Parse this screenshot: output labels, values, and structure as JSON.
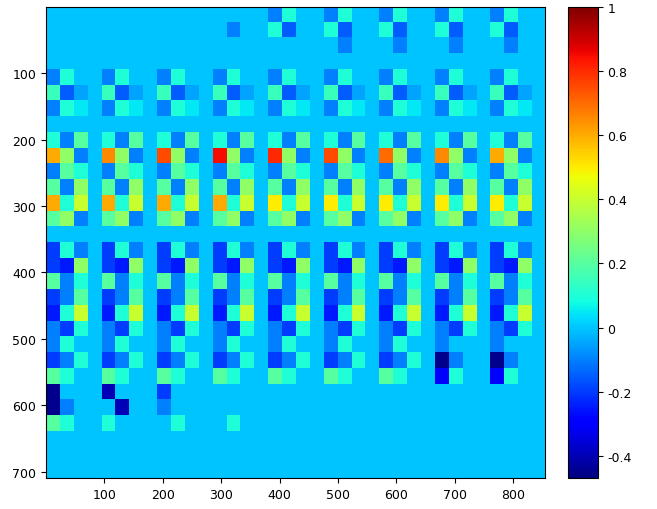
{
  "chart_data": {
    "type": "heatmap",
    "xlim": [
      0,
      855
    ],
    "ylim": [
      710,
      0
    ],
    "xticks": [
      100,
      200,
      300,
      400,
      500,
      600,
      700,
      800
    ],
    "yticks": [
      100,
      200,
      300,
      400,
      500,
      600,
      700
    ],
    "colorbar_range": [
      -0.47,
      1
    ],
    "colorbar_ticks": [
      -0.4,
      -0.2,
      0,
      0.2,
      0.4,
      0.6,
      0.8,
      1
    ],
    "cells": [
      [
        0,
        0,
        0,
        0,
        0,
        0,
        0,
        0,
        0,
        0,
        0,
        0,
        0,
        0,
        0,
        0,
        -0.1,
        0.1,
        0,
        0,
        -0.1,
        0.1,
        0,
        0,
        -0.1,
        0.1,
        0,
        0,
        -0.1,
        0.1,
        0,
        0,
        -0.1,
        0.1,
        0,
        0
      ],
      [
        0,
        0,
        0,
        0,
        0,
        0,
        0,
        0,
        0,
        0,
        0,
        0,
        0,
        -0.1,
        0,
        0,
        0.1,
        -0.15,
        0,
        0,
        0.1,
        -0.15,
        0,
        0,
        0.1,
        -0.15,
        0,
        0,
        0.1,
        -0.15,
        0,
        0,
        0.1,
        -0.15,
        0,
        0
      ],
      [
        0,
        0,
        0,
        0,
        0,
        0,
        0,
        0,
        0,
        0,
        0,
        0,
        0,
        0,
        0,
        0,
        0,
        0,
        0,
        0,
        0,
        -0.1,
        0,
        0,
        0,
        -0.1,
        0,
        0,
        0,
        -0.1,
        0,
        0,
        0,
        -0.1,
        0,
        0
      ],
      [
        0,
        0,
        0,
        0,
        0,
        0,
        0,
        0,
        0,
        0,
        0,
        0,
        0,
        0,
        0,
        0,
        0,
        0,
        0,
        0,
        0,
        0,
        0,
        0,
        0,
        0,
        0,
        0,
        0,
        0,
        0,
        0,
        0,
        0,
        0,
        0
      ],
      [
        -0.1,
        0.1,
        0,
        0,
        -0.1,
        0.1,
        0,
        0,
        -0.1,
        0.1,
        0,
        0,
        -0.1,
        0.1,
        0,
        0,
        -0.1,
        0.1,
        0,
        0,
        -0.1,
        0.1,
        0,
        0,
        -0.1,
        0.1,
        0,
        0,
        -0.1,
        0.1,
        0,
        0,
        -0.1,
        0.1,
        0,
        0
      ],
      [
        0.15,
        -0.15,
        -0.05,
        0,
        0.15,
        -0.15,
        -0.05,
        0,
        0.15,
        -0.15,
        -0.05,
        0,
        0.15,
        -0.15,
        -0.05,
        0,
        0.15,
        -0.15,
        -0.05,
        0,
        0.15,
        -0.15,
        -0.05,
        0,
        0.15,
        -0.15,
        -0.05,
        0,
        0.15,
        -0.15,
        -0.05,
        0,
        0.15,
        -0.15,
        -0.05,
        0
      ],
      [
        -0.1,
        0.1,
        0.05,
        0,
        -0.1,
        0.1,
        0.05,
        0,
        -0.1,
        0.1,
        0.05,
        0,
        -0.1,
        0.1,
        0.05,
        0,
        -0.1,
        0.1,
        0.05,
        0,
        -0.1,
        0.1,
        0.05,
        0,
        -0.1,
        0.1,
        0.05,
        0,
        -0.1,
        0.1,
        0.05,
        0,
        -0.1,
        0.1,
        0.05,
        0
      ],
      [
        0,
        0,
        0,
        0,
        0,
        0,
        0,
        0,
        0,
        0,
        0,
        0,
        0,
        0,
        0,
        0,
        0,
        0,
        0,
        0,
        0,
        0,
        0,
        0,
        0,
        0,
        0,
        0,
        0,
        0,
        0,
        0,
        0,
        0,
        0,
        0
      ],
      [
        0.1,
        -0.1,
        0.2,
        0,
        0.1,
        -0.1,
        0.2,
        0,
        0.1,
        -0.1,
        0.2,
        0,
        0.1,
        -0.1,
        0.2,
        0,
        0.1,
        -0.1,
        0.2,
        0,
        0.1,
        -0.1,
        0.2,
        0,
        0.1,
        -0.1,
        0.2,
        0,
        0.1,
        -0.1,
        0.2,
        0,
        0.1,
        -0.1,
        0.2,
        0
      ],
      [
        0.6,
        0.3,
        -0.1,
        0,
        0.65,
        0.3,
        -0.1,
        0,
        0.75,
        0.3,
        -0.1,
        0,
        0.85,
        0.3,
        -0.1,
        0,
        0.8,
        0.3,
        -0.1,
        0,
        0.75,
        0.3,
        -0.1,
        0,
        0.7,
        0.3,
        -0.1,
        0,
        0.65,
        0.3,
        -0.1,
        0,
        0.6,
        0.3,
        -0.1,
        0
      ],
      [
        -0.1,
        0.2,
        0.1,
        0,
        -0.1,
        0.2,
        0.1,
        0,
        -0.1,
        0.2,
        0.1,
        0,
        -0.1,
        0.2,
        0.1,
        0,
        -0.1,
        0.2,
        0.1,
        0,
        -0.1,
        0.2,
        0.1,
        0,
        -0.1,
        0.2,
        0.1,
        0,
        -0.1,
        0.2,
        0.1,
        0,
        -0.1,
        0.2,
        0.1,
        0
      ],
      [
        0.2,
        -0.1,
        0.3,
        0,
        0.2,
        -0.1,
        0.3,
        0,
        0.2,
        -0.1,
        0.3,
        0,
        0.2,
        -0.1,
        0.3,
        0,
        0.2,
        -0.1,
        0.3,
        0,
        0.2,
        -0.1,
        0.3,
        0,
        0.2,
        -0.1,
        0.3,
        0,
        0.2,
        -0.1,
        0.3,
        0,
        0.2,
        -0.1,
        0.3,
        0
      ],
      [
        0.6,
        0.1,
        0.4,
        0,
        0.6,
        0.1,
        0.4,
        0,
        0.6,
        0.1,
        0.4,
        0,
        0.6,
        0.1,
        0.4,
        0,
        0.5,
        0.1,
        0.4,
        0,
        0.5,
        0.1,
        0.4,
        0,
        0.5,
        0.1,
        0.4,
        0,
        0.5,
        0.1,
        0.4,
        0,
        0.5,
        0.1,
        0.4,
        0
      ],
      [
        0.2,
        0.3,
        -0.1,
        0,
        0.2,
        0.3,
        -0.1,
        0,
        0.2,
        0.3,
        -0.1,
        0,
        0.2,
        0.3,
        -0.1,
        0,
        0.2,
        0.3,
        -0.1,
        0,
        0.2,
        0.3,
        -0.1,
        0,
        0.2,
        0.3,
        -0.1,
        0,
        0.2,
        0.3,
        -0.1,
        0,
        0.2,
        0.3,
        -0.1,
        0
      ],
      [
        0,
        0,
        0,
        0,
        0,
        0,
        0,
        0,
        0,
        0,
        0,
        0,
        0,
        0,
        0,
        0,
        0,
        0,
        0,
        0,
        0,
        0,
        0,
        0,
        0,
        0,
        0,
        0,
        0,
        0,
        0,
        0,
        0,
        0,
        0,
        0
      ],
      [
        -0.2,
        0.1,
        -0.1,
        0,
        -0.2,
        0.1,
        -0.1,
        0,
        -0.2,
        0.1,
        -0.1,
        0,
        -0.2,
        0.1,
        -0.1,
        0,
        -0.2,
        0.1,
        -0.1,
        0,
        -0.2,
        0.1,
        -0.1,
        0,
        -0.2,
        0.1,
        -0.1,
        0,
        -0.2,
        0.1,
        -0.1,
        0,
        -0.2,
        0.1,
        -0.1,
        0
      ],
      [
        -0.2,
        -0.25,
        0.3,
        0,
        -0.2,
        -0.25,
        0.3,
        0,
        -0.2,
        -0.25,
        0.3,
        0,
        -0.2,
        -0.25,
        0.3,
        0,
        -0.2,
        -0.25,
        0.3,
        0,
        -0.2,
        -0.25,
        0.3,
        0,
        -0.2,
        -0.25,
        0.3,
        0,
        -0.2,
        -0.25,
        0.3,
        0,
        -0.2,
        -0.25,
        0.3,
        0
      ],
      [
        0.2,
        -0.1,
        0.1,
        0,
        0.2,
        -0.1,
        0.1,
        0,
        0.2,
        -0.1,
        0.1,
        0,
        0.2,
        -0.1,
        0.1,
        0,
        0.2,
        -0.1,
        0.1,
        0,
        0.2,
        -0.1,
        0.1,
        0,
        0.2,
        -0.1,
        0.1,
        0,
        0.2,
        -0.1,
        0.1,
        0,
        0.2,
        -0.1,
        0.1,
        0
      ],
      [
        -0.2,
        -0.1,
        0.2,
        0,
        -0.2,
        -0.1,
        0.2,
        0,
        -0.2,
        -0.1,
        0.2,
        0,
        -0.2,
        -0.1,
        0.2,
        0,
        -0.2,
        -0.1,
        0.2,
        0,
        -0.2,
        -0.1,
        0.2,
        0,
        -0.2,
        -0.1,
        0.2,
        0,
        -0.2,
        -0.1,
        0.2,
        0,
        -0.2,
        -0.1,
        0.2,
        0
      ],
      [
        -0.25,
        0.1,
        0.4,
        0,
        -0.25,
        0.1,
        0.4,
        0,
        -0.25,
        0.1,
        0.4,
        0,
        -0.25,
        0.1,
        0.4,
        0,
        -0.25,
        0.1,
        0.4,
        0,
        -0.25,
        0.1,
        0.4,
        0,
        -0.25,
        0.1,
        0.4,
        0,
        -0.25,
        0.1,
        0.4,
        0,
        -0.25,
        0.1,
        0.4,
        0
      ],
      [
        -0.1,
        -0.2,
        0.1,
        0,
        -0.1,
        -0.2,
        0.1,
        0,
        -0.1,
        -0.2,
        0.1,
        0,
        -0.1,
        -0.2,
        0.1,
        0,
        -0.1,
        -0.2,
        0.1,
        0,
        -0.1,
        -0.2,
        0.1,
        0,
        -0.1,
        -0.2,
        0.1,
        0,
        -0.1,
        -0.2,
        0.1,
        0,
        -0.1,
        -0.2,
        0.1,
        0
      ],
      [
        -0.1,
        0.1,
        0,
        0,
        -0.1,
        0.1,
        0,
        0,
        -0.1,
        0.1,
        0,
        0,
        -0.1,
        0.1,
        0,
        0,
        -0.1,
        0.1,
        0,
        0,
        -0.1,
        0.1,
        0,
        0,
        -0.1,
        0.1,
        0,
        0,
        -0.1,
        0,
        0,
        0,
        -0.1,
        0,
        0,
        0
      ],
      [
        -0.2,
        -0.1,
        0.1,
        0,
        -0.2,
        -0.1,
        0.1,
        0,
        -0.2,
        -0.1,
        0.1,
        0,
        -0.2,
        -0.1,
        0.1,
        0,
        -0.2,
        -0.1,
        0.1,
        0,
        -0.2,
        -0.1,
        0.1,
        0,
        -0.2,
        -0.1,
        0.1,
        0,
        -0.45,
        -0.1,
        0,
        0,
        -0.45,
        -0.1,
        0,
        0
      ],
      [
        0.2,
        0.1,
        0,
        0,
        0.2,
        0.1,
        0,
        0,
        0.2,
        0.1,
        0,
        0,
        0.2,
        0.1,
        0,
        0,
        0.2,
        0.1,
        0,
        0,
        0.2,
        0.1,
        0,
        0,
        0.2,
        0.1,
        0,
        0,
        -0.3,
        0.1,
        0,
        0,
        -0.3,
        0.1,
        0,
        0
      ],
      [
        -0.45,
        0,
        0,
        0,
        -0.4,
        0,
        0,
        0,
        -0.2,
        0,
        0,
        0,
        0,
        0,
        0,
        0,
        0,
        0,
        0,
        0,
        0,
        0,
        0,
        0,
        0,
        0,
        0,
        0,
        0,
        0,
        0,
        0,
        0,
        0,
        0,
        0
      ],
      [
        -0.45,
        -0.1,
        0,
        0,
        0,
        -0.4,
        0,
        0,
        -0.1,
        0,
        0,
        0,
        0,
        0,
        0,
        0,
        0,
        0,
        0,
        0,
        0,
        0,
        0,
        0,
        0,
        0,
        0,
        0,
        0,
        0,
        0,
        0,
        0,
        0,
        0,
        0
      ],
      [
        0.2,
        0.1,
        0,
        0,
        0.1,
        0,
        0,
        0,
        0,
        0.1,
        0,
        0,
        0,
        0.1,
        0,
        0,
        0,
        0,
        0,
        0,
        0,
        0,
        0,
        0,
        0,
        0,
        0,
        0,
        0,
        0,
        0,
        0,
        0,
        0,
        0,
        0
      ],
      [
        0,
        0,
        0,
        0,
        0,
        0,
        0,
        0,
        0,
        0,
        0,
        0,
        0,
        0,
        0,
        0,
        0,
        0,
        0,
        0,
        0,
        0,
        0,
        0,
        0,
        0,
        0,
        0,
        0,
        0,
        0,
        0,
        0,
        0,
        0,
        0
      ],
      [
        0,
        0,
        0,
        0,
        0,
        0,
        0,
        0,
        0,
        0,
        0,
        0,
        0,
        0,
        0,
        0,
        0,
        0,
        0,
        0,
        0,
        0,
        0,
        0,
        0,
        0,
        0,
        0,
        0,
        0,
        0,
        0,
        0,
        0,
        0,
        0
      ],
      [
        0,
        0,
        0,
        0,
        0,
        0,
        0,
        0,
        0,
        0,
        0,
        0,
        0,
        0,
        0,
        0,
        0,
        0,
        0,
        0,
        0,
        0,
        0,
        0,
        0,
        0,
        0,
        0,
        0,
        0,
        0,
        0,
        0,
        0,
        0,
        0
      ]
    ]
  }
}
